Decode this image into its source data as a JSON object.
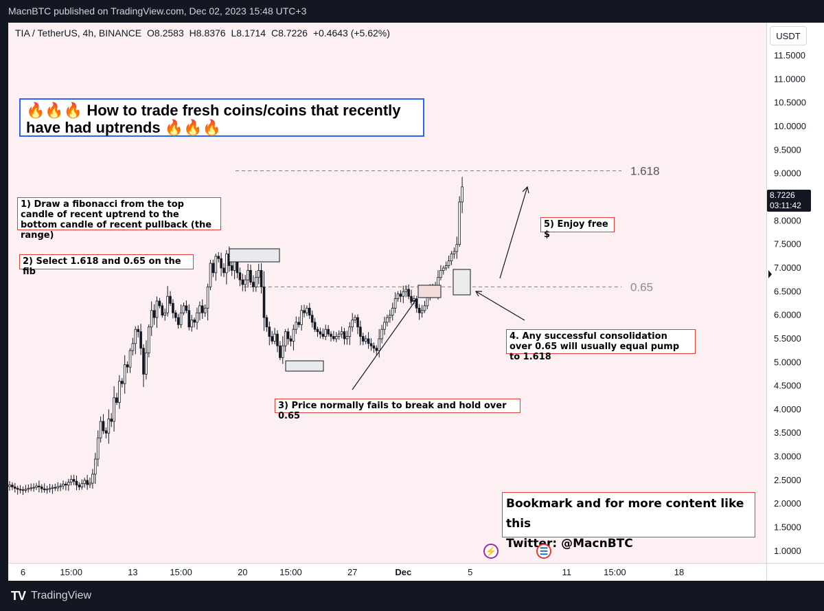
{
  "header": {
    "text": "MacnBTC published on TradingView.com, Dec 02, 2023 15:48 UTC+3"
  },
  "footer": {
    "logo": "TV",
    "brand": "TradingView"
  },
  "symbol_info": {
    "pair": "TIA / TetherUS, 4h, BINANCE",
    "open": "O8.2583",
    "high": "H8.8376",
    "low": "L8.1714",
    "close": "C8.7226",
    "change": "+0.4643 (+5.62%)"
  },
  "currency_button": "USDT",
  "last_price": {
    "value": "8.7226",
    "countdown": "03:11:42"
  },
  "title_box": {
    "line1": "How to trade fresh coins/coins that recently",
    "line2": "have had uptrends",
    "fire": "🔥🔥🔥"
  },
  "notes": {
    "step1": "1) Draw a fibonacci from the top candle of recent uptrend to the bottom candle of recent pullback (the range)",
    "step2": "2) Select 1.618 and 0.65 on the fib",
    "step3": "3) Price normally fails to break and hold over 0.65",
    "step4": "4. Any successful consolidation over 0.65 will usually equal pump to 1.618",
    "step5": "5) Enjoy free $",
    "bookmark": "Bookmark and for more content like this",
    "twitter": "Twitter: @MacnBTC"
  },
  "colors": {
    "up": "#ffffff",
    "down": "#131722",
    "fib_line": "#787b86",
    "note_border": "#e53935",
    "title_border": "#2962ff"
  },
  "chart_data": {
    "type": "candlestick",
    "y_ticks": [
      "11.5000",
      "11.0000",
      "10.5000",
      "10.0000",
      "9.5000",
      "9.0000",
      "8.5000",
      "8.0000",
      "7.5000",
      "7.0000",
      "6.5000",
      "6.0000",
      "5.5000",
      "5.0000",
      "4.5000",
      "4.0000",
      "3.5000",
      "3.0000",
      "2.5000",
      "2.0000",
      "1.5000",
      "1.0000"
    ],
    "ylim": [
      0.75,
      12.2
    ],
    "x_ticks": [
      {
        "label": "6",
        "idx": 5
      },
      {
        "label": "15:00",
        "idx": 23
      },
      {
        "label": "13",
        "idx": 46
      },
      {
        "label": "15:00",
        "idx": 64
      },
      {
        "label": "20",
        "idx": 87
      },
      {
        "label": "15:00",
        "idx": 105
      },
      {
        "label": "27",
        "idx": 128
      },
      {
        "label": "Dec",
        "idx": 147
      },
      {
        "label": "5",
        "idx": 172
      },
      {
        "label": "11",
        "idx": 208
      },
      {
        "label": "15:00",
        "idx": 226
      },
      {
        "label": "18",
        "idx": 250
      }
    ],
    "fib_levels": [
      {
        "label": "1.618",
        "value": 9.06
      },
      {
        "label": "0.65",
        "value": 6.6
      }
    ],
    "close": [
      2.4,
      2.36,
      2.33,
      2.31,
      2.3,
      2.29,
      2.31,
      2.33,
      2.34,
      2.35,
      2.38,
      2.36,
      2.32,
      2.3,
      2.31,
      2.33,
      2.35,
      2.34,
      2.37,
      2.38,
      2.42,
      2.4,
      2.46,
      2.52,
      2.48,
      2.4,
      2.36,
      2.43,
      2.5,
      2.41,
      2.44,
      2.63,
      2.95,
      3.4,
      3.75,
      3.55,
      3.5,
      3.8,
      3.75,
      4.25,
      4.15,
      4.6,
      4.55,
      4.95,
      4.9,
      5.25,
      5.4,
      5.7,
      5.65,
      5.3,
      4.75,
      5.2,
      5.75,
      6.1,
      5.95,
      6.3,
      6.2,
      6.0,
      6.05,
      6.4,
      6.25,
      6.05,
      5.95,
      5.8,
      6.05,
      6.2,
      6.1,
      5.75,
      5.9,
      5.85,
      6.05,
      6.2,
      6.05,
      6.15,
      6.6,
      7.1,
      6.9,
      7.25,
      7.2,
      7.0,
      6.9,
      7.3,
      7.05,
      6.95,
      7.15,
      6.9,
      6.75,
      6.65,
      6.75,
      6.95,
      6.7,
      6.6,
      6.8,
      6.95,
      6.6,
      5.95,
      5.75,
      5.55,
      5.45,
      5.6,
      5.35,
      5.1,
      5.35,
      5.65,
      5.5,
      5.45,
      5.7,
      5.85,
      5.8,
      6.1,
      6.05,
      6.15,
      6.0,
      5.85,
      5.7,
      5.65,
      5.6,
      5.55,
      5.7,
      5.6,
      5.55,
      5.5,
      5.55,
      5.6,
      5.65,
      5.5,
      5.55,
      5.75,
      5.9,
      5.95,
      5.75,
      5.55,
      5.45,
      5.5,
      5.4,
      5.35,
      5.3,
      5.25,
      5.5,
      5.7,
      5.85,
      5.95,
      6.0,
      6.15,
      6.35,
      6.45,
      6.4,
      6.5,
      6.55,
      6.4,
      6.3,
      6.35,
      6.15,
      6.05,
      6.1,
      6.2,
      6.4,
      6.55,
      6.6,
      6.5,
      6.8,
      6.95,
      7.0,
      7.05,
      7.15,
      7.3,
      7.35,
      7.5,
      8.4,
      8.72
    ],
    "last_value": 8.7226
  }
}
